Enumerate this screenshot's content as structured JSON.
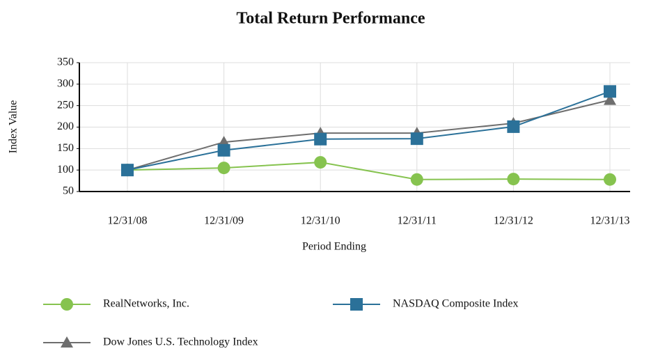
{
  "chart_data": {
    "type": "line",
    "title": "Total Return Performance",
    "x_label": "Period Ending",
    "y_label": "Index Value",
    "categories": [
      "12/31/08",
      "12/31/09",
      "12/31/10",
      "12/31/11",
      "12/31/12",
      "12/31/13"
    ],
    "series": [
      {
        "name": "RealNetworks, Inc.",
        "color": "#86c34f",
        "marker": "circle",
        "values": [
          100,
          105,
          118,
          78,
          79,
          78
        ]
      },
      {
        "name": "NASDAQ Composite Index",
        "color": "#2b7199",
        "marker": "square",
        "values": [
          100,
          146,
          172,
          173,
          201,
          283
        ]
      },
      {
        "name": "Dow Jones U.S. Technology Index",
        "color": "#6e6e6e",
        "marker": "triangle",
        "values": [
          100,
          165,
          186,
          186,
          209,
          263
        ]
      }
    ],
    "ylim": [
      50,
      350
    ],
    "yticks": [
      50,
      100,
      150,
      200,
      250,
      300,
      350
    ],
    "grid": true,
    "legend": "bottom"
  }
}
